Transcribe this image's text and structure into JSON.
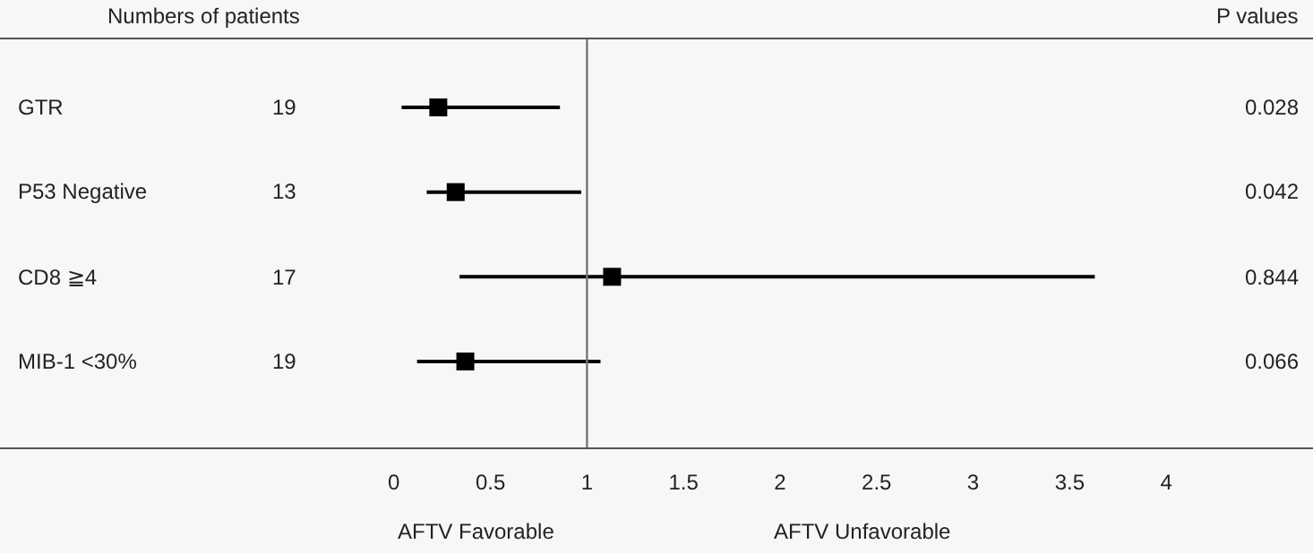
{
  "chart_data": {
    "type": "scatter",
    "orientation": "horizontal",
    "marker": "square",
    "categories": [
      "GTR",
      "P53 Negative",
      "CD8 ≧4",
      "MIB-1 <30%"
    ],
    "values": [
      0.23,
      0.32,
      1.13,
      0.37
    ],
    "errors": [
      [
        0.04,
        0.86
      ],
      [
        0.17,
        0.97
      ],
      [
        0.34,
        3.63
      ],
      [
        0.12,
        1.07
      ]
    ],
    "color": "#000000",
    "xlim": [
      -2.04,
      4.76
    ],
    "xticks": [
      0,
      0.5,
      1,
      1.5,
      2,
      2.5,
      3,
      3.5,
      4
    ],
    "ref_lines": [
      {
        "axis": "x",
        "value": 1,
        "color": "#777777"
      }
    ],
    "grid": false,
    "legend": false,
    "annotations": [
      "Numbers of patients",
      "P values",
      "AFTV Favorable",
      "AFTV Unfavorable",
      "19",
      "13",
      "17",
      "19",
      "0.028",
      "0.042",
      "0.844",
      "0.066"
    ]
  }
}
